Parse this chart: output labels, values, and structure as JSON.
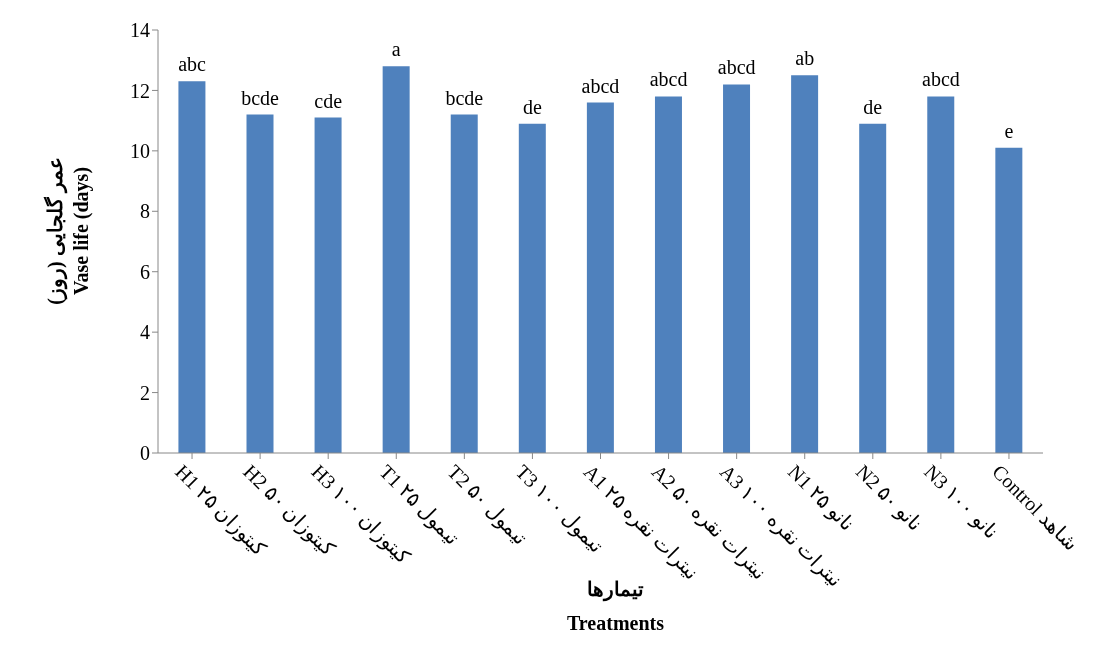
{
  "chart_data": {
    "type": "bar",
    "xlabel": "تیمارها\nTreatments",
    "ylabel": "عمر گلجایی (روز)\nVase life (days)",
    "categories": [
      "H1 کیتوزان ۲۵",
      "H2 کیتوزان ۵۰",
      "H3 کیتوزان ۱۰۰",
      "T1 تیمول ۲۵",
      "T2 تیمول ۵۰",
      "T3 تیمول ۱۰۰",
      "A1 نیترات نقره ۲۵",
      "A2 نیترات نقره ۵۰",
      "A3 نیترات نقره ۱۰۰",
      "N1 نانو ۲۵",
      "N2 نانو ۵۰",
      "N3 نانو ۱۰۰",
      "Control شاهد"
    ],
    "values": [
      12.3,
      11.2,
      11.1,
      12.8,
      11.2,
      10.9,
      11.6,
      11.8,
      12.2,
      12.5,
      10.9,
      11.8,
      10.1
    ],
    "color": "#4f81bd",
    "ylim": [
      0,
      14
    ],
    "yticks": [
      0,
      2,
      4,
      6,
      8,
      10,
      12,
      14
    ],
    "grid": false,
    "legend": false,
    "annotations": [
      {
        "text": "abc",
        "x": "H1 کیتوزان ۲۵",
        "y": 12.3
      },
      {
        "text": "bcde",
        "x": "H2 کیتوزان ۵۰",
        "y": 11.2
      },
      {
        "text": "cde",
        "x": "H3 کیتوزان ۱۰۰",
        "y": 11.1
      },
      {
        "text": "a",
        "x": "T1 تیمول ۲۵",
        "y": 12.8
      },
      {
        "text": "bcde",
        "x": "T2 تیمول ۵۰",
        "y": 11.2
      },
      {
        "text": "de",
        "x": "T3 تیمول ۱۰۰",
        "y": 10.9
      },
      {
        "text": "abcd",
        "x": "A1 نیترات نقره ۲۵",
        "y": 11.6
      },
      {
        "text": "abcd",
        "x": "A2 نیترات نقره ۵۰",
        "y": 11.8
      },
      {
        "text": "abcd",
        "x": "A3 نیترات نقره ۱۰۰",
        "y": 12.2
      },
      {
        "text": "ab",
        "x": "N1 نانو ۲۵",
        "y": 12.5
      },
      {
        "text": "de",
        "x": "N2 نانو ۵۰",
        "y": 10.9
      },
      {
        "text": "abcd",
        "x": "N3 نانو ۱۰۰",
        "y": 11.8
      },
      {
        "text": "e",
        "x": "Control شاهد",
        "y": 10.1
      }
    ]
  }
}
